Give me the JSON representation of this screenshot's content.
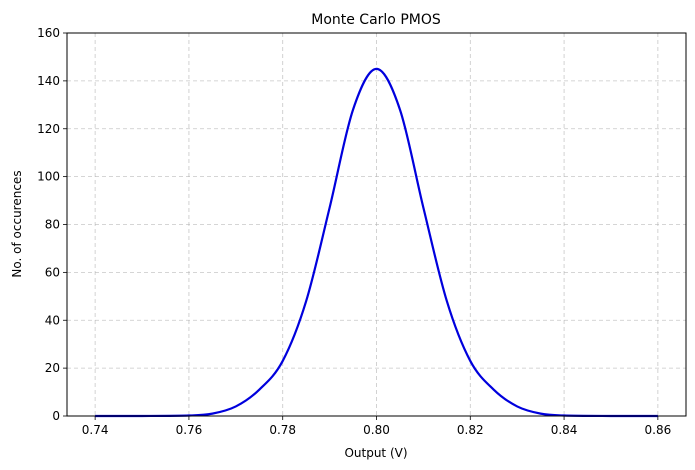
{
  "chart_data": {
    "type": "line",
    "title": "Monte Carlo PMOS",
    "xlabel": "Output (V)",
    "ylabel": "No. of occurences",
    "xlim": [
      0.734,
      0.866
    ],
    "ylim": [
      0,
      160
    ],
    "xticks": [
      "0.74",
      "0.76",
      "0.78",
      "0.80",
      "0.82",
      "0.84",
      "0.86"
    ],
    "yticks": [
      "0",
      "20",
      "40",
      "60",
      "80",
      "100",
      "120",
      "140",
      "160"
    ],
    "grid": true,
    "series": [
      {
        "color": "#0000dd",
        "x": [
          0.74,
          0.75,
          0.76,
          0.765,
          0.77,
          0.775,
          0.78,
          0.785,
          0.79,
          0.795,
          0.8,
          0.805,
          0.81,
          0.815,
          0.82,
          0.825,
          0.83,
          0.835,
          0.84,
          0.85,
          0.86
        ],
        "y": [
          0.0,
          0.0,
          0.2,
          1.0,
          4.0,
          11.0,
          23.0,
          48.0,
          87.0,
          128.0,
          145.0,
          128.0,
          87.0,
          48.0,
          23.0,
          11.0,
          4.0,
          1.0,
          0.2,
          0.0,
          0.0
        ]
      }
    ]
  }
}
